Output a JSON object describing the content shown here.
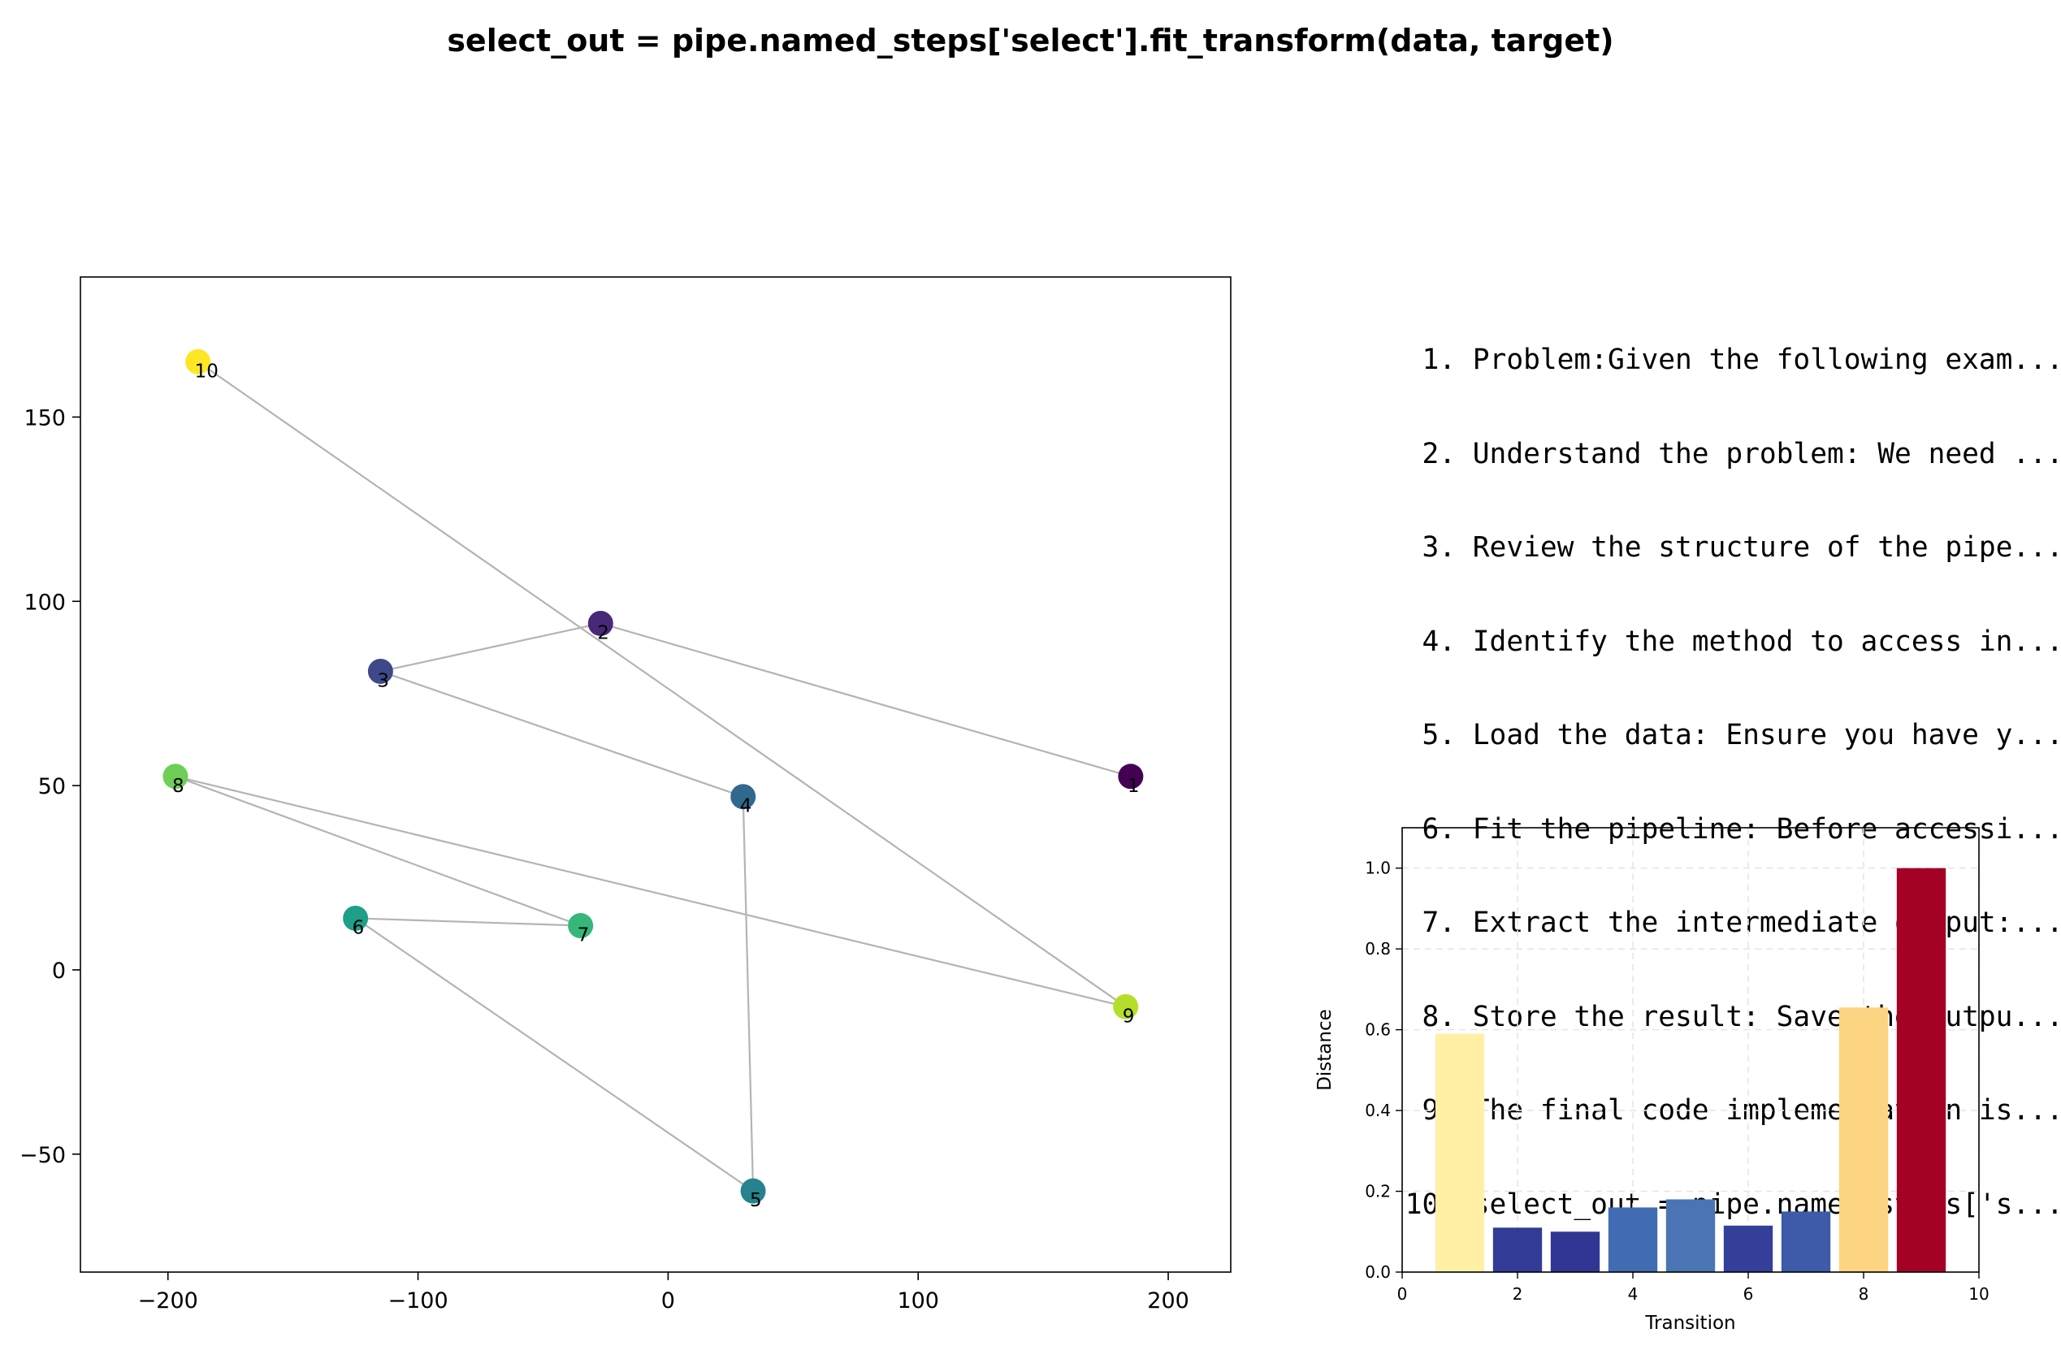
{
  "title": "select_out = pipe.named_steps['select'].fit_transform(data, target)",
  "steps": [
    {
      "num": "1.",
      "text": "Problem:Given the following exam..."
    },
    {
      "num": "2.",
      "text": "Understand the problem: We need ..."
    },
    {
      "num": "3.",
      "text": "Review the structure of the pipe..."
    },
    {
      "num": "4.",
      "text": "Identify the method to access in..."
    },
    {
      "num": "5.",
      "text": "Load the data: Ensure you have y..."
    },
    {
      "num": "6.",
      "text": "Fit the pipeline: Before accessi..."
    },
    {
      "num": "7.",
      "text": "Extract the intermediate output:..."
    },
    {
      "num": "8.",
      "text": "Store the result: Save the outpu..."
    },
    {
      "num": "9.",
      "text": "The final code implementation is..."
    },
    {
      "num": "10.",
      "text": "select_out = pipe.named_steps['s..."
    }
  ],
  "chart_data": [
    {
      "type": "scatter",
      "title": "",
      "xlabel": "",
      "ylabel": "",
      "xlim": [
        -235,
        225
      ],
      "ylim": [
        -82,
        188
      ],
      "xticks": [
        -200,
        -100,
        0,
        100,
        200
      ],
      "xtick_labels": [
        "−200",
        "−100",
        "0",
        "100",
        "200"
      ],
      "yticks": [
        -50,
        0,
        50,
        100,
        150
      ],
      "ytick_labels": [
        "−50",
        "0",
        "50",
        "100",
        "150"
      ],
      "grid": false,
      "line_color": "#b4b4b4",
      "points": [
        {
          "label": "1",
          "x": 185,
          "y": 52.5,
          "color": "#440154"
        },
        {
          "label": "2",
          "x": -27,
          "y": 94,
          "color": "#482878"
        },
        {
          "label": "3",
          "x": -115,
          "y": 81,
          "color": "#3e4989"
        },
        {
          "label": "4",
          "x": 30,
          "y": 47,
          "color": "#31688e"
        },
        {
          "label": "5",
          "x": 34,
          "y": -60,
          "color": "#26828e"
        },
        {
          "label": "6",
          "x": -125,
          "y": 14,
          "color": "#1f9e89"
        },
        {
          "label": "7",
          "x": -35,
          "y": 12,
          "color": "#35b779"
        },
        {
          "label": "8",
          "x": -197,
          "y": 52.5,
          "color": "#6ece58"
        },
        {
          "label": "9",
          "x": 183,
          "y": -10,
          "color": "#b5de2b"
        },
        {
          "label": "10",
          "x": -188,
          "y": 165,
          "color": "#fde725"
        }
      ]
    },
    {
      "type": "bar",
      "title": "",
      "xlabel": "Transition",
      "ylabel": "Distance",
      "xlim": [
        0,
        10
      ],
      "ylim": [
        0,
        1.1
      ],
      "xticks": [
        0,
        2,
        4,
        6,
        8,
        10
      ],
      "xtick_labels": [
        "0",
        "2",
        "4",
        "6",
        "8",
        "10"
      ],
      "yticks": [
        0,
        0.2,
        0.4,
        0.6,
        0.8,
        1.0
      ],
      "ytick_labels": [
        "0.0",
        "0.2",
        "0.4",
        "0.6",
        "0.8",
        "1.0"
      ],
      "grid": true,
      "categories": [
        1,
        2,
        3,
        4,
        5,
        6,
        7,
        8,
        9
      ],
      "values": [
        0.59,
        0.11,
        0.1,
        0.16,
        0.18,
        0.115,
        0.15,
        0.655,
        1.0
      ],
      "colors": [
        "#fff0a6",
        "#323c96",
        "#313695",
        "#416bb2",
        "#4a74b4",
        "#333f98",
        "#3e5ba9",
        "#fdd481",
        "#a50026"
      ]
    }
  ]
}
